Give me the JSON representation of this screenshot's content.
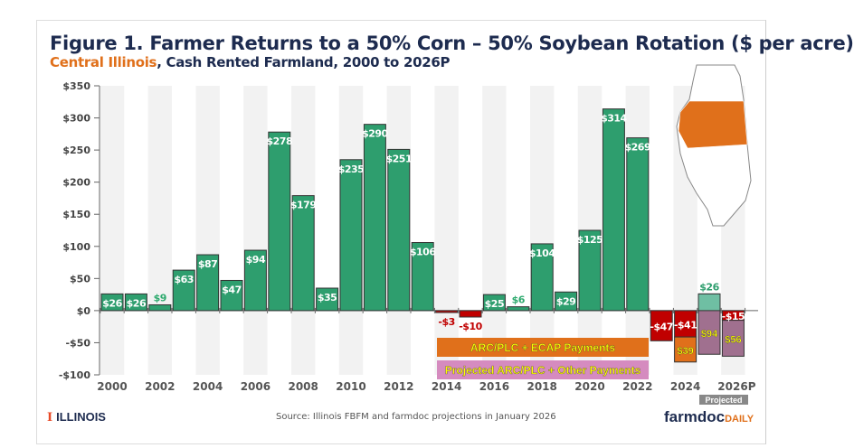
{
  "chart_data": {
    "type": "bar",
    "title": "Figure 1. Farmer Returns to a 50% Corn – 50% Soybean Rotation ($ per acre)",
    "subtitle_highlight": "Central Illinois",
    "subtitle_rest": ", Cash Rented Farmland, 2000 to 2026P",
    "ylim": [
      -100,
      350
    ],
    "yticks": [
      350,
      300,
      250,
      200,
      150,
      100,
      50,
      0,
      -50,
      -100
    ],
    "ytick_labels": [
      "$350",
      "$300",
      "$250",
      "$200",
      "$150",
      "$100",
      "$50",
      "$0",
      "-$50",
      "-$100"
    ],
    "categories": [
      "2000",
      "2001",
      "2002",
      "2003",
      "2004",
      "2005",
      "2006",
      "2007",
      "2008",
      "2009",
      "2010",
      "2011",
      "2012",
      "2013",
      "2014",
      "2015",
      "2016",
      "2017",
      "2018",
      "2019",
      "2020",
      "2021",
      "2022",
      "2023",
      "2024",
      "2025",
      "2026P"
    ],
    "xtick_labels": [
      "2000",
      "2002",
      "2004",
      "2006",
      "2008",
      "2010",
      "2012",
      "2014",
      "2016",
      "2018",
      "2020",
      "2022",
      "2024",
      "2026P"
    ],
    "values": [
      26,
      26,
      9,
      63,
      87,
      47,
      94,
      278,
      179,
      35,
      235,
      290,
      251,
      106,
      -3,
      -10,
      25,
      6,
      104,
      29,
      125,
      314,
      269,
      -47,
      -41,
      26,
      -15
    ],
    "stacked_extra": [
      {
        "year": "2024",
        "series": "ARC/PLC + ECAP Payments",
        "value": 39
      },
      {
        "year": "2025",
        "series": "Projected ARC/PLC + Other Payments",
        "value": 94
      },
      {
        "year": "2026P",
        "series": "Projected ARC/PLC + Other Payments",
        "value": 56
      }
    ],
    "legend": [
      "ARC/PLC + ECAP Payments",
      "Projected ARC/PLC + Other Payments"
    ],
    "projected_label": "Projected",
    "colors": {
      "positive": "#2e9e6e",
      "negative": "#c00000",
      "ecap": "#e0701b",
      "projected_payments": "#a0708f",
      "projected_positive": "#6fbfa3",
      "legend_pink": "#d58bbf",
      "label_yellow": "#ffff00"
    }
  },
  "source": "Source: Illinois FBFM and farmdoc projections in January 2026",
  "logo_left": "ILLINOIS",
  "logo_right_main": "farmdoc",
  "logo_right_sub": "DAILY"
}
